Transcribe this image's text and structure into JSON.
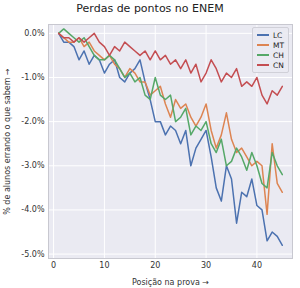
{
  "chart_data": {
    "type": "line",
    "title": "Perdas de pontos no ENEM",
    "x_label": "Posição na prova",
    "y_label": "% de alunos errando o que sabem",
    "x": [
      1,
      2,
      3,
      4,
      5,
      6,
      7,
      8,
      9,
      10,
      11,
      12,
      13,
      14,
      15,
      16,
      17,
      18,
      19,
      20,
      21,
      22,
      23,
      24,
      25,
      26,
      27,
      28,
      29,
      30,
      31,
      32,
      33,
      34,
      35,
      36,
      37,
      38,
      39,
      40,
      41,
      42,
      43,
      44,
      45
    ],
    "series": [
      {
        "name": "LC",
        "color": "#4c72b0",
        "values": [
          0,
          -0.2,
          -0.2,
          -0.3,
          -0.6,
          -0.4,
          -0.7,
          -0.5,
          -0.6,
          -0.9,
          -0.7,
          -0.6,
          -1.0,
          -1.1,
          -0.9,
          -0.8,
          -0.6,
          -1.1,
          -1.5,
          -2.0,
          -2.0,
          -2.3,
          -2.1,
          -2.2,
          -2.5,
          -2.2,
          -3.0,
          -2.6,
          -2.4,
          -2.2,
          -2.8,
          -3.5,
          -3.8,
          -3.0,
          -3.3,
          -4.3,
          -3.6,
          -3.7,
          -3.3,
          -3.9,
          -4.0,
          -4.7,
          -4.5,
          -4.6,
          -4.8
        ]
      },
      {
        "name": "MT",
        "color": "#dd8452",
        "values": [
          0,
          -0.1,
          -0.2,
          -0.2,
          -0.1,
          -0.3,
          -0.2,
          -0.4,
          -0.5,
          -0.6,
          -0.5,
          -0.7,
          -0.8,
          -1.0,
          -0.8,
          -0.9,
          -1.1,
          -1.1,
          -1.4,
          -1.3,
          -1.2,
          -1.6,
          -1.9,
          -1.5,
          -1.7,
          -1.6,
          -1.9,
          -2.1,
          -1.9,
          -1.6,
          -2.2,
          -2.6,
          -2.3,
          -1.8,
          -2.4,
          -2.7,
          -2.6,
          -2.8,
          -3.0,
          -2.9,
          -3.0,
          -4.1,
          -2.5,
          -3.4,
          -3.6
        ]
      },
      {
        "name": "CH",
        "color": "#55a868",
        "values": [
          0,
          0.1,
          0.0,
          -0.1,
          -0.2,
          -0.1,
          -0.3,
          -0.5,
          -0.6,
          -0.6,
          -0.5,
          -0.6,
          -0.8,
          -1.0,
          -0.9,
          -1.1,
          -1.0,
          -1.4,
          -1.5,
          -1.0,
          -1.4,
          -1.5,
          -1.4,
          -2.0,
          -1.9,
          -1.7,
          -2.3,
          -2.1,
          -2.2,
          -2.0,
          -2.5,
          -2.7,
          -2.4,
          -3.0,
          -2.9,
          -2.6,
          -2.8,
          -3.1,
          -2.7,
          -3.0,
          -3.4,
          -3.5,
          -2.7,
          -3.0,
          -3.2
        ]
      },
      {
        "name": "CN",
        "color": "#c44e52",
        "values": [
          0,
          -0.1,
          -0.1,
          -0.2,
          -0.1,
          -0.2,
          -0.1,
          0.0,
          -0.2,
          -0.3,
          -0.5,
          -0.3,
          -0.4,
          -0.2,
          -0.3,
          -0.4,
          -0.5,
          -0.4,
          -0.6,
          -0.4,
          -0.6,
          -0.5,
          -0.7,
          -0.6,
          -0.8,
          -0.6,
          -0.9,
          -0.7,
          -1.1,
          -0.9,
          -0.6,
          -0.8,
          -1.1,
          -0.9,
          -1.0,
          -0.8,
          -1.2,
          -1.1,
          -1.2,
          -1.0,
          -1.4,
          -1.6,
          -1.3,
          -1.4,
          -1.2
        ]
      }
    ],
    "xlim": [
      -1,
      47
    ],
    "ylim": [
      -5.1,
      0.2
    ],
    "xticks": [
      0,
      10,
      20,
      30,
      40
    ],
    "yticks": [
      {
        "value": 0,
        "label": "0.0%"
      },
      {
        "value": -1,
        "label": "-1.0%"
      },
      {
        "value": -2,
        "label": "-2.0%"
      },
      {
        "value": -3,
        "label": "-3.0%"
      },
      {
        "value": -4,
        "label": "-4.0%"
      },
      {
        "value": -5,
        "label": "-5.0%"
      }
    ],
    "grid": true,
    "legend": "upper right"
  }
}
